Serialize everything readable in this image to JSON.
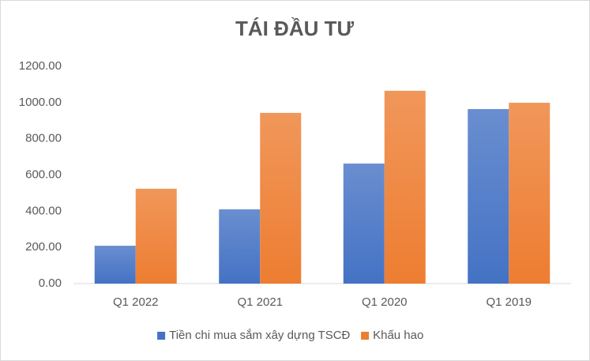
{
  "chart_data": {
    "type": "bar",
    "title": "TÁI ĐẦU TƯ",
    "categories": [
      "Q1 2022",
      "Q1 2021",
      "Q1 2020",
      "Q1 2019"
    ],
    "series": [
      {
        "name": "Tiền chi mua sắm xây dựng TSCĐ",
        "color": "#4472c4",
        "values": [
          209,
          410,
          663,
          964
        ]
      },
      {
        "name": "Khấu hao",
        "color": "#ed7d31",
        "values": [
          524,
          943,
          1065,
          999
        ]
      }
    ],
    "ylim": [
      0,
      1200
    ],
    "yticks": [
      {
        "value": 0,
        "label": "0.00"
      },
      {
        "value": 200,
        "label": "200.00"
      },
      {
        "value": 400,
        "label": "400.00"
      },
      {
        "value": 600,
        "label": "600.00"
      },
      {
        "value": 800,
        "label": "800.00"
      },
      {
        "value": 1000,
        "label": "1000.00"
      },
      {
        "value": 1200,
        "label": "1200.00"
      }
    ],
    "grid": false,
    "legend": "bottom"
  }
}
